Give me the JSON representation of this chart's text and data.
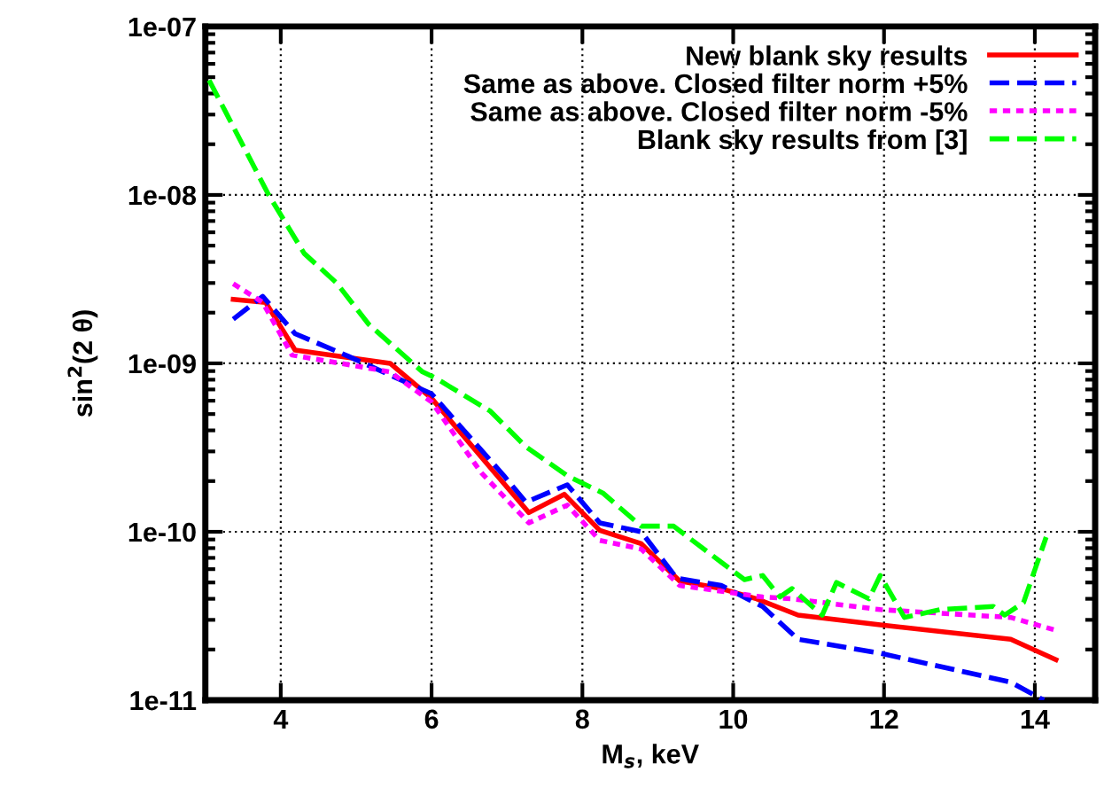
{
  "chart_data": {
    "type": "line",
    "xlabel": "M$_{s}$, keV",
    "ylabel": "sin$^{2}$(2 θ)",
    "log": "y",
    "xlim": [
      3,
      14.8
    ],
    "xticks": [
      4,
      6,
      8,
      10,
      12,
      14
    ],
    "ylim": [
      1e-11,
      1e-07
    ],
    "yticks": [
      {
        "value": 1e-11,
        "label": "1e-11"
      },
      {
        "value": 1e-10,
        "label": "1e-10"
      },
      {
        "value": 1e-09,
        "label": "1e-09"
      },
      {
        "value": 1e-08,
        "label": "1e-08"
      },
      {
        "value": 1e-07,
        "label": "1e-07"
      }
    ],
    "grid": true,
    "legend": "top right",
    "series": [
      {
        "name": "New blank sky results",
        "color": "#ff0000",
        "line_style": "solid",
        "x": [
          3.37,
          3.8,
          4.19,
          5.45,
          6.0,
          6.78,
          7.29,
          7.76,
          8.23,
          8.78,
          9.29,
          9.84,
          10.31,
          10.86,
          11.95,
          13.68,
          14.28
        ],
        "values": [
          2.4e-09,
          2.3e-09,
          1.2e-09,
          1e-09,
          6.2e-10,
          2.4e-10,
          1.3e-10,
          1.67e-10,
          1.02e-10,
          8.5e-11,
          5.1e-11,
          4.6e-11,
          4e-11,
          3.2e-11,
          2.8e-11,
          2.3e-11,
          1.74e-11
        ]
      },
      {
        "name": "Same as above. Closed filter norm +5%",
        "color": "#0000ff",
        "line_style": "dashed",
        "x": [
          3.37,
          3.76,
          4.19,
          4.9,
          6.0,
          6.96,
          7.25,
          7.8,
          8.23,
          8.78,
          9.25,
          9.84,
          10.39,
          10.86,
          11.95,
          13.68,
          14.12
        ],
        "values": [
          1.83e-09,
          2.5e-09,
          1.5e-09,
          1.1e-09,
          6.6e-10,
          2.15e-10,
          1.5e-10,
          1.9e-10,
          1.13e-10,
          1e-10,
          5.3e-11,
          4.8e-11,
          3.6e-11,
          2.3e-11,
          1.9e-11,
          1.28e-11,
          1e-11
        ]
      },
      {
        "name": "Same as above. Closed filter norm -5%",
        "color": "#ff00ff",
        "line_style": "dotted",
        "x": [
          3.37,
          3.76,
          4.15,
          5.45,
          6.0,
          6.66,
          7.29,
          7.8,
          8.23,
          8.78,
          9.29,
          10.39,
          10.78,
          11.95,
          13.68,
          14.28
        ],
        "values": [
          2.97e-09,
          2.3e-09,
          1.12e-09,
          8.9e-10,
          5.9e-10,
          2.24e-10,
          1.13e-10,
          1.44e-10,
          8.9e-11,
          7.9e-11,
          4.8e-11,
          4.1e-11,
          4e-11,
          3.45e-11,
          3.1e-11,
          2.6e-11
        ]
      },
      {
        "name": "Blank sky results from [3]",
        "color": "#00ff00",
        "line_style": "dashed",
        "x": [
          3.05,
          3.84,
          4.31,
          4.74,
          5.17,
          5.88,
          6.05,
          6.78,
          7.25,
          7.8,
          8.27,
          8.78,
          9.21,
          9.84,
          10.15,
          10.39,
          10.62,
          10.78,
          11.18,
          11.37,
          11.8,
          11.95,
          12.27,
          12.74,
          13.45,
          13.6,
          13.85,
          14.15
        ],
        "values": [
          4.8e-08,
          1e-08,
          4.5e-09,
          3e-09,
          1.7e-09,
          8.9e-10,
          8.2e-10,
          5.2e-10,
          3.2e-10,
          2.15e-10,
          1.7e-10,
          1.08e-10,
          1.08e-10,
          6.6e-11,
          5.2e-11,
          5.5e-11,
          4.1e-11,
          4.6e-11,
          3.2e-11,
          5e-11,
          4e-11,
          5.5e-11,
          3.1e-11,
          3.45e-11,
          3.6e-11,
          3.2e-11,
          3.8e-11,
          9.3e-11
        ]
      }
    ]
  }
}
